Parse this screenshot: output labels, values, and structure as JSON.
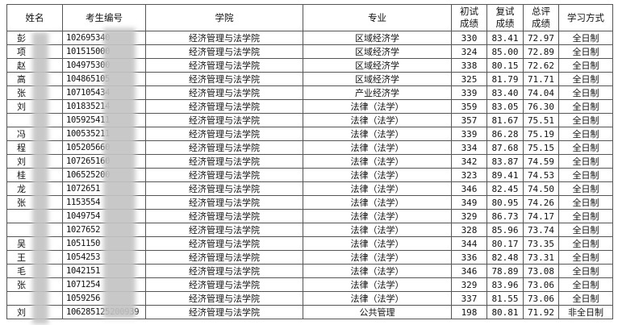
{
  "headers": [
    "姓名",
    "考生编号",
    "学院",
    "专业",
    "初试\n成绩",
    "复试\n成绩",
    "总评\n成绩",
    "学习方式"
  ],
  "rows": [
    [
      "彭",
      "102695340",
      "经济管理与法学院",
      "区域经济学",
      "330",
      "83.41",
      "72.97",
      "全日制"
    ],
    [
      "项",
      "101515000",
      "经济管理与法学院",
      "区域经济学",
      "324",
      "85.00",
      "72.89",
      "全日制"
    ],
    [
      "赵",
      "104975300",
      "经济管理与法学院",
      "区域经济学",
      "338",
      "80.15",
      "72.62",
      "全日制"
    ],
    [
      "高",
      "104865105",
      "经济管理与法学院",
      "区域经济学",
      "325",
      "81.79",
      "71.71",
      "全日制"
    ],
    [
      "张",
      "107105434",
      "经济管理与法学院",
      "产业经济学",
      "339",
      "83.40",
      "74.04",
      "全日制"
    ],
    [
      "刘",
      "101835214",
      "经济管理与法学院",
      "法律（法学）",
      "359",
      "83.05",
      "76.30",
      "全日制"
    ],
    [
      "",
      "105925411",
      "经济管理与法学院",
      "法律（法学）",
      "357",
      "81.67",
      "75.51",
      "全日制"
    ],
    [
      "冯",
      "100535211",
      "经济管理与法学院",
      "法律（法学）",
      "339",
      "86.28",
      "75.19",
      "全日制"
    ],
    [
      "程",
      "105205660",
      "经济管理与法学院",
      "法律（法学）",
      "334",
      "87.68",
      "75.15",
      "全日制"
    ],
    [
      "刘",
      "107265160",
      "经济管理与法学院",
      "法律（法学）",
      "342",
      "83.87",
      "74.59",
      "全日制"
    ],
    [
      "桂",
      "106525200",
      "经济管理与法学院",
      "法律（法学）",
      "323",
      "89.41",
      "74.53",
      "全日制"
    ],
    [
      "龙",
      "1072651",
      "经济管理与法学院",
      "法律（法学）",
      "346",
      "82.45",
      "74.50",
      "全日制"
    ],
    [
      "张",
      "1153554",
      "经济管理与法学院",
      "法律（法学）",
      "349",
      "80.95",
      "74.26",
      "全日制"
    ],
    [
      "",
      "1049754",
      "经济管理与法学院",
      "法律（法学）",
      "329",
      "86.73",
      "74.17",
      "全日制"
    ],
    [
      "",
      "1027652",
      "经济管理与法学院",
      "法律（法学）",
      "328",
      "85.96",
      "73.74",
      "全日制"
    ],
    [
      "吴",
      "1051150",
      "经济管理与法学院",
      "法律（法学）",
      "344",
      "80.17",
      "73.35",
      "全日制"
    ],
    [
      "王",
      "1054253",
      "经济管理与法学院",
      "法律（法学）",
      "336",
      "82.48",
      "73.31",
      "全日制"
    ],
    [
      "毛",
      "1042151",
      "经济管理与法学院",
      "法律（法学）",
      "346",
      "78.89",
      "73.08",
      "全日制"
    ],
    [
      "张",
      "1071254",
      "经济管理与法学院",
      "法律（法学）",
      "329",
      "83.96",
      "73.06",
      "全日制"
    ],
    [
      "",
      "1059256",
      "经济管理与法学院",
      "法律（法学）",
      "337",
      "81.55",
      "73.06",
      "全日制"
    ],
    [
      "刘",
      "106285125200939",
      "经济管理与法学院",
      "公共管理",
      "198",
      "80.81",
      "71.92",
      "非全日制"
    ]
  ]
}
